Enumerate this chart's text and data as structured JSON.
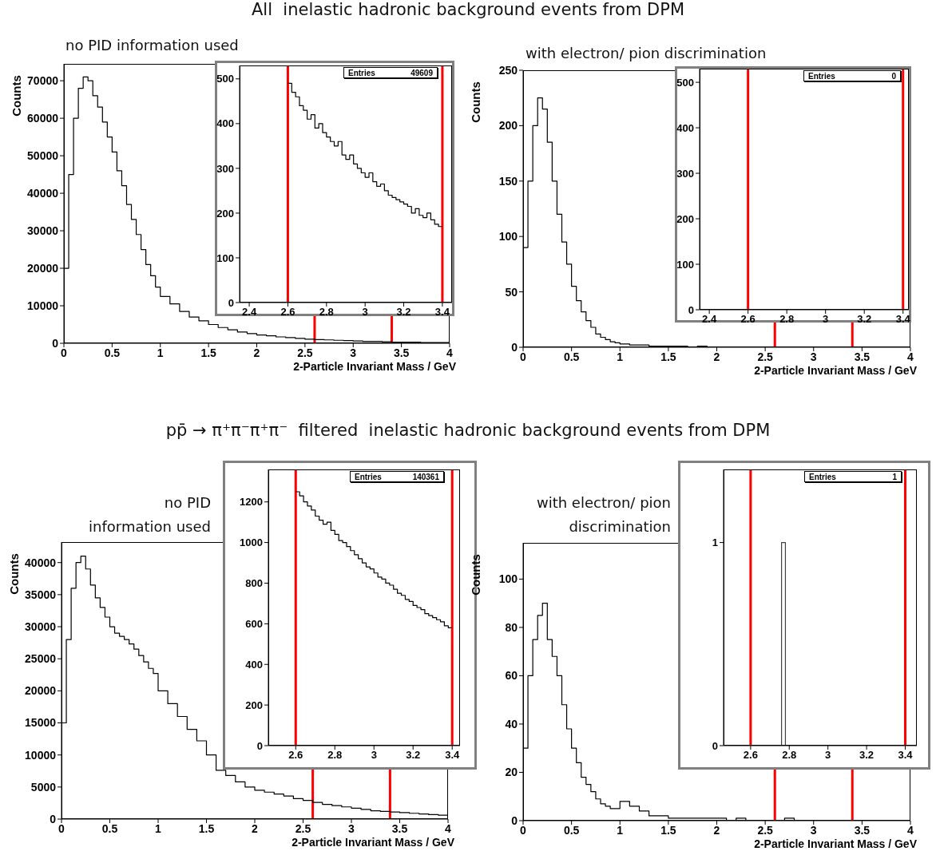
{
  "chart_data": [
    {
      "type": "histogram",
      "title": "All  inelastic hadronic background events from DPM",
      "subtitle": "no PID information used",
      "xlabel": "2-Particle Invariant Mass / GeV",
      "ylabel": "Counts",
      "color": "#000000",
      "bins": [
        0,
        0.05,
        0.1,
        0.15,
        0.2,
        0.25,
        0.3,
        0.35,
        0.4,
        0.45,
        0.5,
        0.55,
        0.6,
        0.65,
        0.7,
        0.75,
        0.8,
        0.85,
        0.9,
        0.95,
        1,
        1.1,
        1.2,
        1.3,
        1.4,
        1.5,
        1.6,
        1.7,
        1.8,
        1.9,
        2,
        2.1,
        2.2,
        2.3,
        2.4,
        2.5,
        2.6,
        2.7,
        2.8,
        2.9,
        3,
        3.1,
        3.2,
        3.3,
        3.4,
        3.5,
        3.6,
        3.7,
        3.8,
        3.9,
        4
      ],
      "values": [
        20000,
        45000,
        60000,
        68000,
        71000,
        70000,
        66000,
        63000,
        59000,
        55000,
        51000,
        46000,
        42000,
        37000,
        33000,
        29000,
        25000,
        21000,
        18000,
        15000,
        12500,
        10500,
        8500,
        7000,
        6000,
        5000,
        4200,
        3600,
        3000,
        2600,
        2200,
        2000,
        1700,
        1500,
        1300,
        1100,
        1000,
        900,
        800,
        700,
        600,
        500,
        500,
        400,
        300,
        300,
        300,
        200,
        200,
        200
      ],
      "xlim": [
        0,
        4
      ],
      "ylim": [
        0,
        74500
      ],
      "xticks": [
        0,
        0.5,
        1,
        1.5,
        2,
        2.5,
        3,
        3.5,
        4
      ],
      "yticks": [
        0,
        10000,
        20000,
        30000,
        40000,
        50000,
        60000,
        70000
      ],
      "ref_lines": [
        {
          "axis": "x",
          "value": 2.6,
          "color": "#ff0000"
        },
        {
          "axis": "x",
          "value": 3.4,
          "color": "#ff0000"
        }
      ]
    },
    {
      "type": "histogram",
      "color": "#000000",
      "annotations": [
        "Entries",
        "49609"
      ],
      "bins": [
        2.6,
        2.62,
        2.64,
        2.66,
        2.68,
        2.7,
        2.72,
        2.74,
        2.76,
        2.78,
        2.8,
        2.82,
        2.84,
        2.86,
        2.88,
        2.9,
        2.92,
        2.94,
        2.96,
        2.98,
        3,
        3.02,
        3.04,
        3.06,
        3.08,
        3.1,
        3.12,
        3.14,
        3.16,
        3.18,
        3.2,
        3.22,
        3.24,
        3.26,
        3.28,
        3.3,
        3.32,
        3.34,
        3.36,
        3.38,
        3.4
      ],
      "values": [
        490,
        470,
        460,
        440,
        430,
        410,
        420,
        390,
        400,
        380,
        370,
        360,
        350,
        360,
        330,
        320,
        330,
        310,
        300,
        290,
        280,
        290,
        270,
        260,
        265,
        250,
        240,
        235,
        230,
        225,
        220,
        215,
        200,
        210,
        195,
        190,
        200,
        185,
        175,
        170
      ],
      "xlim": [
        2.35,
        3.45
      ],
      "ylim": [
        0,
        530
      ],
      "xticks": [
        2.4,
        2.6,
        2.8,
        3,
        3.2,
        3.4
      ],
      "yticks": [
        0,
        100,
        200,
        300,
        400,
        500
      ],
      "ref_lines": [
        {
          "axis": "x",
          "value": 2.6,
          "color": "#ff0000"
        },
        {
          "axis": "x",
          "value": 3.4,
          "color": "#ff0000"
        }
      ]
    },
    {
      "type": "histogram",
      "subtitle": "with electron/ pion discrimination",
      "xlabel": "2-Particle Invariant Mass / GeV",
      "ylabel": "Counts",
      "color": "#000000",
      "bins": [
        0,
        0.05,
        0.1,
        0.15,
        0.2,
        0.25,
        0.3,
        0.35,
        0.4,
        0.45,
        0.5,
        0.55,
        0.6,
        0.65,
        0.7,
        0.75,
        0.8,
        0.85,
        0.9,
        0.95,
        1,
        1.1,
        1.2,
        1.3,
        1.4,
        1.5,
        1.6,
        1.7,
        1.8,
        1.9,
        2,
        2.1,
        2.2,
        2.3,
        2.4,
        2.5,
        2.6,
        2.7,
        2.8,
        2.9,
        3,
        3.1,
        3.2,
        3.3,
        3.4,
        3.5,
        3.6,
        3.7,
        3.8,
        3.9,
        4
      ],
      "values": [
        90,
        150,
        200,
        225,
        215,
        185,
        150,
        120,
        95,
        75,
        55,
        42,
        32,
        24,
        18,
        12,
        9,
        7,
        5,
        4,
        3,
        2,
        2,
        1,
        1,
        1,
        1,
        0,
        1,
        0,
        0,
        0,
        0,
        0,
        0,
        0,
        0,
        0,
        0,
        0,
        0,
        0,
        0,
        0,
        0,
        0,
        0,
        0,
        0,
        0
      ],
      "xlim": [
        0,
        4
      ],
      "ylim": [
        0,
        250
      ],
      "xticks": [
        0,
        0.5,
        1,
        1.5,
        2,
        2.5,
        3,
        3.5,
        4
      ],
      "yticks": [
        0,
        50,
        100,
        150,
        200,
        250
      ],
      "ref_lines": [
        {
          "axis": "x",
          "value": 2.6,
          "color": "#ff0000"
        },
        {
          "axis": "x",
          "value": 3.4,
          "color": "#ff0000"
        }
      ]
    },
    {
      "type": "histogram",
      "color": "#000000",
      "annotations": [
        "Entries",
        "0"
      ],
      "xlim": [
        2.35,
        3.43
      ],
      "ylim": [
        0,
        530
      ],
      "xticks": [
        2.4,
        2.6,
        2.8,
        3,
        3.2,
        3.4
      ],
      "yticks": [
        0,
        100,
        200,
        300,
        400,
        500
      ],
      "ref_lines": [
        {
          "axis": "x",
          "value": 2.6,
          "color": "#ff0000"
        },
        {
          "axis": "x",
          "value": 3.4,
          "color": "#ff0000"
        }
      ]
    },
    {
      "type": "histogram",
      "title": "pp̄ → π⁺π⁻π⁺π⁻  filtered  inelastic hadronic background events from DPM",
      "subtitle": "no PID information used",
      "xlabel": "2-Particle Invariant Mass / GeV",
      "ylabel": "Counts",
      "color": "#000000",
      "bins": [
        0,
        0.05,
        0.1,
        0.15,
        0.2,
        0.25,
        0.3,
        0.35,
        0.4,
        0.45,
        0.5,
        0.55,
        0.6,
        0.65,
        0.7,
        0.75,
        0.8,
        0.85,
        0.9,
        0.95,
        1,
        1.1,
        1.2,
        1.3,
        1.4,
        1.5,
        1.6,
        1.7,
        1.8,
        1.9,
        2,
        2.1,
        2.2,
        2.3,
        2.4,
        2.5,
        2.6,
        2.7,
        2.8,
        2.9,
        3,
        3.1,
        3.2,
        3.3,
        3.4,
        3.5,
        3.6,
        3.7,
        3.8,
        3.9,
        4
      ],
      "values": [
        15000,
        28000,
        36000,
        40000,
        41000,
        39000,
        36500,
        34500,
        33000,
        31500,
        30000,
        29000,
        28500,
        28000,
        27300,
        26500,
        25500,
        24500,
        23500,
        22700,
        20000,
        18000,
        16000,
        14000,
        12200,
        10000,
        7600,
        6800,
        5800,
        5000,
        4500,
        4200,
        3900,
        3600,
        3200,
        2900,
        2600,
        2300,
        2100,
        1900,
        1700,
        1500,
        1300,
        1200,
        1100,
        1000,
        900,
        800,
        700,
        600
      ],
      "xlim": [
        0,
        4
      ],
      "ylim": [
        0,
        43200
      ],
      "xticks": [
        0,
        0.5,
        1,
        1.5,
        2,
        2.5,
        3,
        3.5,
        4
      ],
      "yticks": [
        0,
        5000,
        10000,
        15000,
        20000,
        25000,
        30000,
        35000,
        40000
      ],
      "ref_lines": [
        {
          "axis": "x",
          "value": 2.6,
          "color": "#ff0000"
        },
        {
          "axis": "x",
          "value": 3.4,
          "color": "#ff0000"
        }
      ]
    },
    {
      "type": "histogram",
      "color": "#000000",
      "annotations": [
        "Entries",
        "140361"
      ],
      "bins": [
        2.6,
        2.62,
        2.64,
        2.66,
        2.68,
        2.7,
        2.72,
        2.74,
        2.76,
        2.78,
        2.8,
        2.82,
        2.84,
        2.86,
        2.88,
        2.9,
        2.92,
        2.94,
        2.96,
        2.98,
        3,
        3.02,
        3.04,
        3.06,
        3.08,
        3.1,
        3.12,
        3.14,
        3.16,
        3.18,
        3.2,
        3.22,
        3.24,
        3.26,
        3.28,
        3.3,
        3.32,
        3.34,
        3.36,
        3.38,
        3.4
      ],
      "values": [
        1250,
        1230,
        1200,
        1180,
        1160,
        1130,
        1110,
        1090,
        1100,
        1060,
        1040,
        1010,
        1000,
        980,
        960,
        940,
        920,
        900,
        880,
        870,
        850,
        830,
        820,
        800,
        790,
        770,
        750,
        740,
        720,
        710,
        690,
        680,
        670,
        650,
        640,
        630,
        620,
        610,
        590,
        580
      ],
      "xlim": [
        2.46,
        3.44
      ],
      "ylim": [
        0,
        1360
      ],
      "xticks": [
        2.6,
        2.8,
        3,
        3.2,
        3.4
      ],
      "yticks": [
        0,
        200,
        400,
        600,
        800,
        1000,
        1200
      ],
      "ref_lines": [
        {
          "axis": "x",
          "value": 2.6,
          "color": "#ff0000"
        },
        {
          "axis": "x",
          "value": 3.4,
          "color": "#ff0000"
        }
      ]
    },
    {
      "type": "histogram",
      "subtitle": "with electron/ pion discrimination",
      "xlabel": "2-Particle Invariant Mass / GeV",
      "ylabel": "Counts",
      "color": "#000000",
      "bins": [
        0,
        0.05,
        0.1,
        0.15,
        0.2,
        0.25,
        0.3,
        0.35,
        0.4,
        0.45,
        0.5,
        0.55,
        0.6,
        0.65,
        0.7,
        0.75,
        0.8,
        0.85,
        0.9,
        0.95,
        1,
        1.1,
        1.2,
        1.3,
        1.4,
        1.5,
        1.6,
        1.7,
        1.8,
        1.9,
        2,
        2.1,
        2.2,
        2.3,
        2.4,
        2.5,
        2.6,
        2.7,
        2.8,
        2.9,
        3,
        3.1,
        3.2,
        3.3,
        3.4,
        3.5,
        3.6,
        3.7,
        3.8,
        3.9,
        4
      ],
      "values": [
        30,
        60,
        75,
        85,
        90,
        75,
        68,
        60,
        48,
        38,
        30,
        24,
        18,
        15,
        12,
        9,
        7,
        6,
        5,
        5,
        8,
        6,
        4,
        2,
        2,
        1,
        1,
        1,
        1,
        1,
        1,
        0,
        1,
        0,
        0,
        0,
        0,
        1,
        0,
        0,
        0,
        0,
        0,
        0,
        0,
        0,
        0,
        0,
        0,
        0
      ],
      "xlim": [
        0,
        4
      ],
      "ylim": [
        0,
        115
      ],
      "xticks": [
        0,
        0.5,
        1,
        1.5,
        2,
        2.5,
        3,
        3.5,
        4
      ],
      "yticks": [
        0,
        20,
        40,
        60,
        80,
        100
      ],
      "ref_lines": [
        {
          "axis": "x",
          "value": 2.6,
          "color": "#ff0000"
        },
        {
          "axis": "x",
          "value": 3.4,
          "color": "#ff0000"
        }
      ]
    },
    {
      "type": "histogram",
      "color": "#404040",
      "annotations": [
        "Entries",
        "1"
      ],
      "bins": [
        2.6,
        2.76,
        2.78,
        3.4
      ],
      "values": [
        0,
        1,
        0
      ],
      "xlim": [
        2.46,
        3.46
      ],
      "ylim": [
        0,
        1.36
      ],
      "xticks": [
        2.6,
        2.8,
        3,
        3.2,
        3.4
      ],
      "yticks": [
        0,
        1
      ],
      "ref_lines": [
        {
          "axis": "x",
          "value": 2.6,
          "color": "#ff0000"
        },
        {
          "axis": "x",
          "value": 3.4,
          "color": "#ff0000"
        }
      ]
    }
  ]
}
